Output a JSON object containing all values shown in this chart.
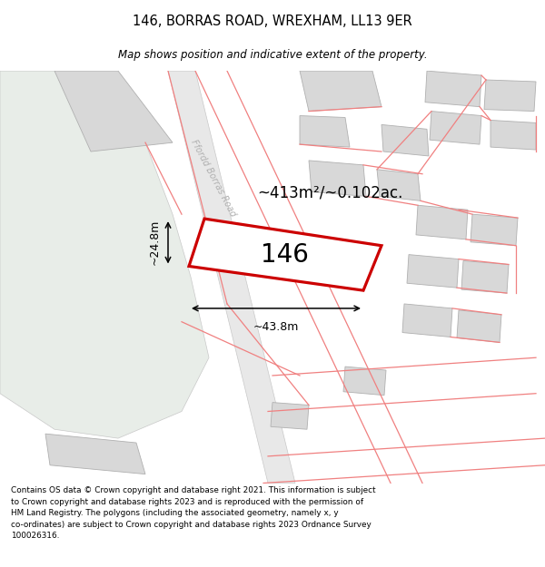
{
  "title": "146, BORRAS ROAD, WREXHAM, LL13 9ER",
  "subtitle": "Map shows position and indicative extent of the property.",
  "footer": "Contains OS data © Crown copyright and database right 2021. This information is subject\nto Crown copyright and database rights 2023 and is reproduced with the permission of\nHM Land Registry. The polygons (including the associated geometry, namely x, y\nco-ordinates) are subject to Crown copyright and database rights 2023 Ordnance Survey\n100026316.",
  "bg_color": "#ffffff",
  "green_color": "#e8ede8",
  "road_color": "#e8e8e8",
  "road_edge": "#c8c8c8",
  "building_fill": "#d8d8d8",
  "building_edge": "#b0b0b0",
  "red_line": "#f08080",
  "highlight": "#cc0000",
  "area_text": "~413m²/~0.102ac.",
  "number_text": "146",
  "dim_w": "~43.8m",
  "dim_h": "~24.8m",
  "road_label": "Ffordd Borras Road"
}
